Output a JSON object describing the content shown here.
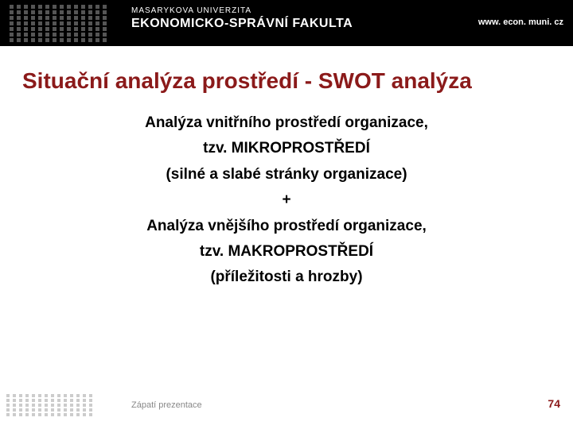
{
  "header": {
    "university": "MASARYKOVA UNIVERZITA",
    "faculty": "EKONOMICKO-SPRÁVNÍ FAKULTA",
    "url": "www. econ. muni. cz"
  },
  "title": {
    "text": "Situační analýza prostředí - SWOT analýza",
    "color": "#8b1a1a",
    "fontsize": 28
  },
  "content": {
    "lines": [
      "Analýza vnitřního prostředí organizace,",
      "tzv. MIKROPROSTŘEDÍ",
      "(silné a  slabé stránky organizace)",
      "+",
      "Analýza vnějšího prostředí organizace,",
      "tzv. MAKROPROSTŘEDÍ",
      "(příležitosti a hrozby)"
    ],
    "fontsize": 19,
    "fontweight": "bold",
    "text_color": "#000000"
  },
  "footer": {
    "text": "Zápatí prezentace",
    "page_number": "74",
    "page_number_color": "#8b1a1a"
  },
  "colors": {
    "header_bg": "#000000",
    "header_text": "#ffffff",
    "title_color": "#8b1a1a",
    "page_bg": "#ffffff"
  }
}
